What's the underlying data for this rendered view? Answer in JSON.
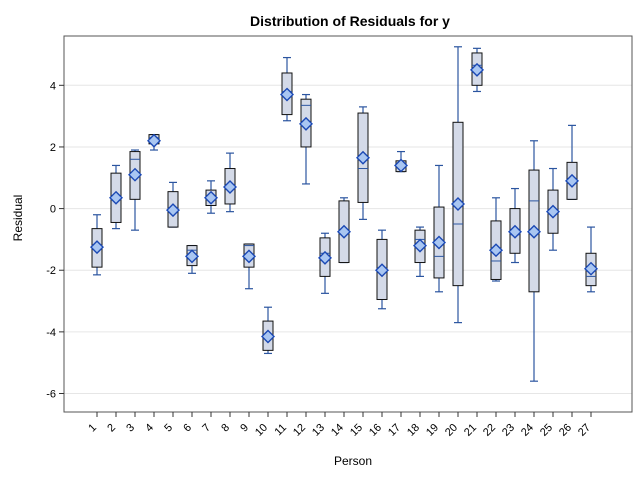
{
  "chart_data": {
    "type": "box",
    "title": "Distribution of Residuals for y",
    "xlabel": "Person",
    "ylabel": "Residual",
    "ylim": [
      -6.6,
      5.6
    ],
    "yticks": [
      -6,
      -4,
      -2,
      0,
      2,
      4
    ],
    "grid": "horizontal",
    "categories": [
      "1",
      "2",
      "3",
      "4",
      "5",
      "6",
      "7",
      "8",
      "9",
      "10",
      "11",
      "12",
      "13",
      "14",
      "15",
      "16",
      "17",
      "18",
      "19",
      "20",
      "21",
      "22",
      "23",
      "24",
      "25",
      "26",
      "27"
    ],
    "boxes": [
      {
        "min": -2.15,
        "q1": -1.9,
        "median": -1.2,
        "q3": -0.65,
        "max": -0.2,
        "mean": -1.25
      },
      {
        "min": -0.65,
        "q1": -0.45,
        "median": 0.35,
        "q3": 1.15,
        "max": 1.4,
        "mean": 0.35
      },
      {
        "min": -0.7,
        "q1": 0.3,
        "median": 1.6,
        "q3": 1.85,
        "max": 1.9,
        "mean": 1.1
      },
      {
        "min": 1.9,
        "q1": 2.1,
        "median": 2.3,
        "q3": 2.4,
        "max": 2.4,
        "mean": 2.2
      },
      {
        "min": -0.6,
        "q1": -0.6,
        "median": -0.05,
        "q3": 0.55,
        "max": 0.85,
        "mean": -0.05
      },
      {
        "min": -2.1,
        "q1": -1.85,
        "median": -1.35,
        "q3": -1.2,
        "max": -1.2,
        "mean": -1.55
      },
      {
        "min": -0.15,
        "q1": 0.1,
        "median": 0.4,
        "q3": 0.6,
        "max": 0.9,
        "mean": 0.35
      },
      {
        "min": -0.1,
        "q1": 0.15,
        "median": 0.75,
        "q3": 1.3,
        "max": 1.8,
        "mean": 0.7
      },
      {
        "min": -2.6,
        "q1": -1.9,
        "median": -1.2,
        "q3": -1.15,
        "max": -1.15,
        "mean": -1.55
      },
      {
        "min": -4.7,
        "q1": -4.6,
        "median": -4.1,
        "q3": -3.65,
        "max": -3.2,
        "mean": -4.15
      },
      {
        "min": 2.85,
        "q1": 3.05,
        "median": 3.8,
        "q3": 4.4,
        "max": 4.9,
        "mean": 3.7
      },
      {
        "min": 0.8,
        "q1": 2.0,
        "median": 3.35,
        "q3": 3.55,
        "max": 3.7,
        "mean": 2.75
      },
      {
        "min": -2.75,
        "q1": -2.2,
        "median": -1.45,
        "q3": -0.95,
        "max": -0.8,
        "mean": -1.6
      },
      {
        "min": -1.75,
        "q1": -1.75,
        "median": -0.7,
        "q3": 0.25,
        "max": 0.35,
        "mean": -0.75
      },
      {
        "min": -0.35,
        "q1": 0.2,
        "median": 1.3,
        "q3": 3.1,
        "max": 3.3,
        "mean": 1.65
      },
      {
        "min": -3.25,
        "q1": -2.95,
        "median": -1.95,
        "q3": -1.0,
        "max": -0.7,
        "mean": -2.0
      },
      {
        "min": 1.2,
        "q1": 1.2,
        "median": 1.45,
        "q3": 1.55,
        "max": 1.85,
        "mean": 1.4
      },
      {
        "min": -2.2,
        "q1": -1.75,
        "median": -1.0,
        "q3": -0.7,
        "max": -0.6,
        "mean": -1.2
      },
      {
        "min": -2.7,
        "q1": -2.25,
        "median": -1.55,
        "q3": 0.05,
        "max": 1.4,
        "mean": -1.1
      },
      {
        "min": -3.7,
        "q1": -2.5,
        "median": -0.5,
        "q3": 2.8,
        "max": 5.25,
        "mean": 0.15
      },
      {
        "min": 3.8,
        "q1": 4.0,
        "median": 4.65,
        "q3": 5.05,
        "max": 5.2,
        "mean": 4.5
      },
      {
        "min": -2.35,
        "q1": -2.3,
        "median": -1.7,
        "q3": -0.4,
        "max": 0.35,
        "mean": -1.35
      },
      {
        "min": -1.75,
        "q1": -1.45,
        "median": -0.85,
        "q3": 0.0,
        "max": 0.65,
        "mean": -0.75
      },
      {
        "min": -5.6,
        "q1": -2.7,
        "median": 0.25,
        "q3": 1.25,
        "max": 2.2,
        "mean": -0.75
      },
      {
        "min": -1.35,
        "q1": -0.8,
        "median": -0.1,
        "q3": 0.6,
        "max": 1.3,
        "mean": -0.1
      },
      {
        "min": 0.3,
        "q1": 0.3,
        "median": 0.85,
        "q3": 1.5,
        "max": 2.7,
        "mean": 0.9
      },
      {
        "min": -2.7,
        "q1": -2.5,
        "median": -2.2,
        "q3": -1.45,
        "max": -0.6,
        "mean": -1.95
      }
    ]
  }
}
